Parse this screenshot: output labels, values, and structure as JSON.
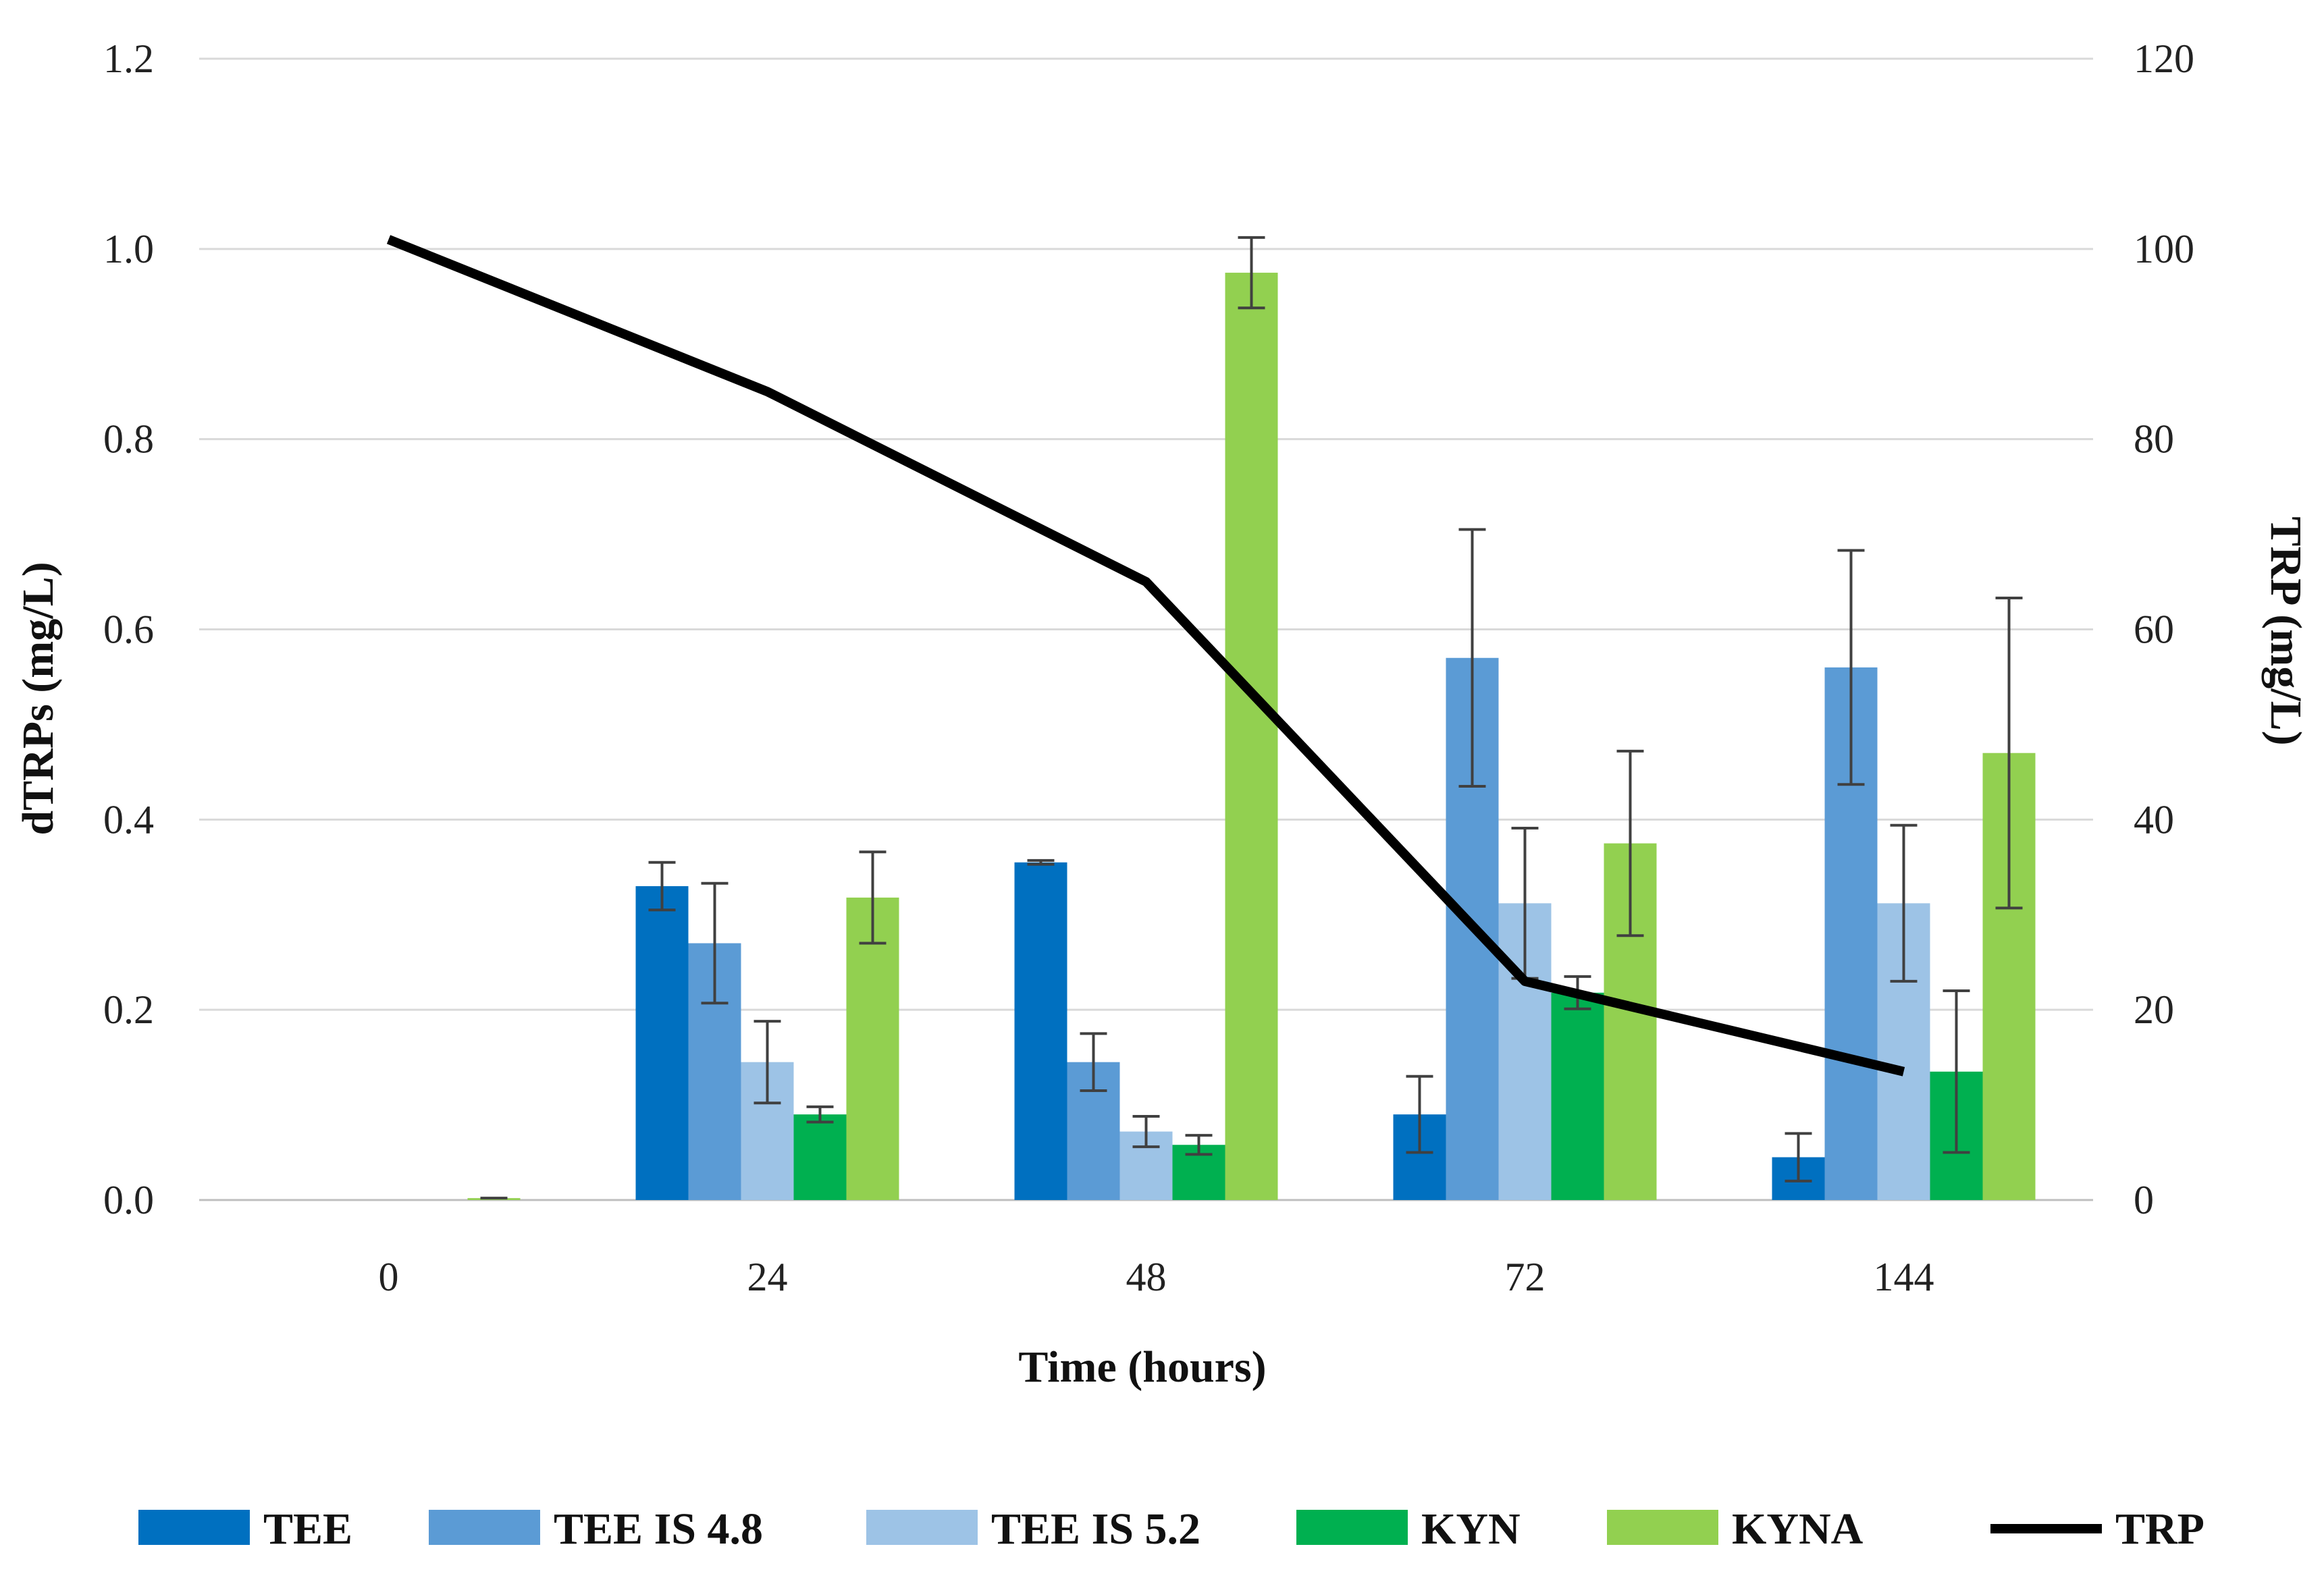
{
  "chart_data": {
    "type": "bar",
    "xlabel": "Time (hours)",
    "ylabel": "dTRPs (mg/L)",
    "y2label": "TRP (mg/L)",
    "categories": [
      "0",
      "24",
      "48",
      "72",
      "144"
    ],
    "ylim": [
      0,
      1.2
    ],
    "y2lim": [
      0,
      120
    ],
    "yticks": [
      "0.0",
      "0.2",
      "0.4",
      "0.6",
      "0.8",
      "1.0",
      "1.2"
    ],
    "y2ticks": [
      "0",
      "20",
      "40",
      "60",
      "80",
      "100",
      "120"
    ],
    "grid": true,
    "legend_position": "bottom",
    "series": [
      {
        "name": "TEE",
        "color": "#0070C0",
        "values": [
          0,
          0.33,
          0.355,
          0.09,
          0.045
        ],
        "errors": [
          0,
          0.025,
          0.002,
          0.04,
          0.025
        ]
      },
      {
        "name": "TEE IS 4.8",
        "color": "#5B9BD5",
        "values": [
          0,
          0.27,
          0.145,
          0.57,
          0.56
        ],
        "errors": [
          0,
          0.063,
          0.03,
          0.135,
          0.123
        ]
      },
      {
        "name": "TEE IS 5.2",
        "color": "#9DC3E6",
        "values": [
          0,
          0.145,
          0.072,
          0.312,
          0.312
        ],
        "errors": [
          0,
          0.043,
          0.016,
          0.079,
          0.082
        ]
      },
      {
        "name": "KYN",
        "color": "#00B050",
        "values": [
          0,
          0.09,
          0.058,
          0.218,
          0.135
        ],
        "errors": [
          0,
          0.008,
          0.01,
          0.017,
          0.085
        ]
      },
      {
        "name": "KYNA",
        "color": "#92D050",
        "values": [
          0.002,
          0.318,
          0.975,
          0.375,
          0.47
        ],
        "errors": [
          0,
          0.048,
          0.037,
          0.097,
          0.163
        ]
      }
    ],
    "line": {
      "name": "TRP",
      "color": "#000000",
      "axis": "right",
      "values": [
        101,
        85,
        65,
        23,
        13.5
      ]
    }
  }
}
